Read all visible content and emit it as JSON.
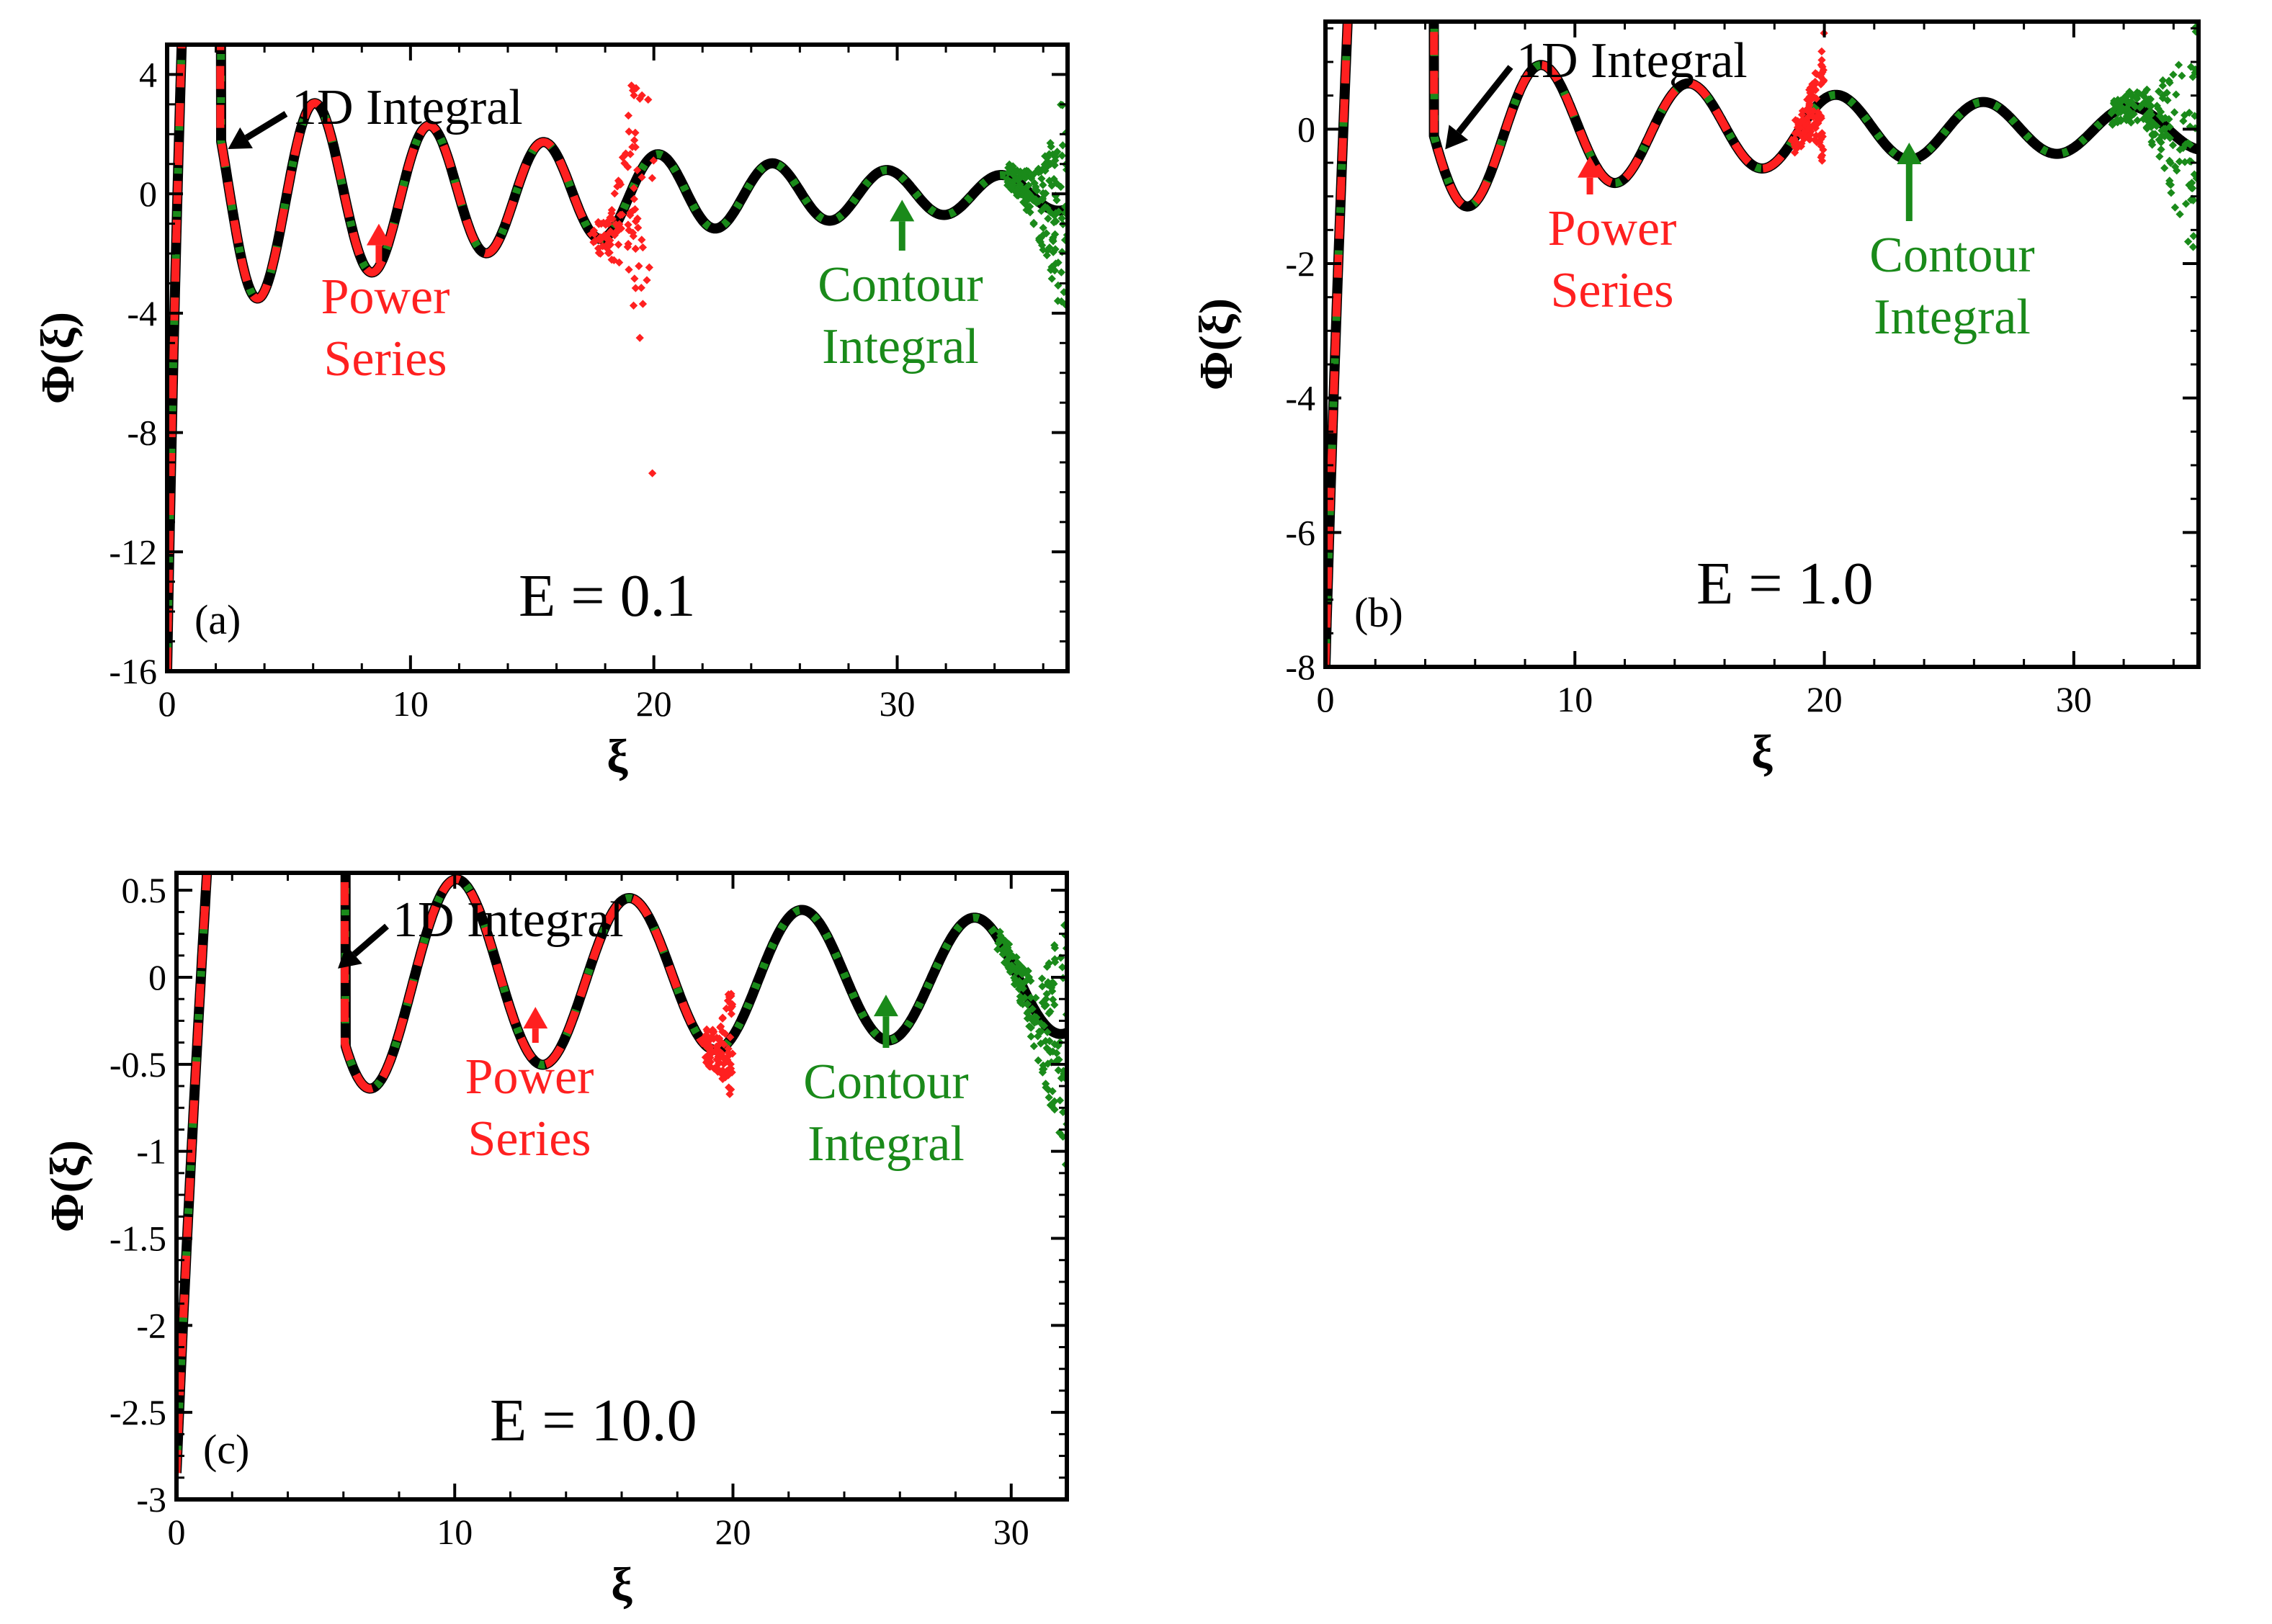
{
  "chart_data": [
    {
      "type": "line",
      "panel": "(a)",
      "title": "E = 0.1",
      "xlabel": "ξ",
      "ylabel": "Φ(ξ)",
      "xlim": [
        0,
        37
      ],
      "ylim": [
        -16,
        5
      ],
      "xticks": [
        0,
        10,
        20,
        30
      ],
      "xtick_labels": [
        "0",
        "10",
        "20",
        "30"
      ],
      "yticks": [
        4,
        0,
        -4,
        -8,
        -12,
        -16
      ],
      "ytick_labels": [
        "4",
        "0",
        "-4",
        "-8",
        "-12",
        "-16"
      ],
      "series": [
        {
          "name": "1D Integral",
          "color": "#000000",
          "style": "solid",
          "x_range": [
            0,
            37
          ]
        },
        {
          "name": "Power Series",
          "color": "#ff2020",
          "style": "dashed",
          "x_range": [
            0,
            20
          ],
          "diverges_after": 17.5
        },
        {
          "name": "Contour Integral",
          "color": "#1a8a1a",
          "style": "dotted",
          "x_range": [
            0,
            37
          ],
          "diverges_after": 34.5
        }
      ],
      "curve": {
        "a_start": -16,
        "k": 0.92,
        "amp": 4.2,
        "decay": 0.065,
        "peak_x": 1.4,
        "period": 4.7,
        "gfloor": 0.22
      },
      "annotations": [
        {
          "text": [
            "1D Integral"
          ],
          "color": "#000000",
          "series": "1D Integral",
          "arrow_to_x": 2.5,
          "arrow_to_y": 1.5
        },
        {
          "text": [
            "Power",
            "Series"
          ],
          "color": "#ff2020",
          "series": "Power Series",
          "arrow_to_x": 8.7,
          "arrow_to_y": -1.0
        },
        {
          "text": [
            "Contour",
            "Integral"
          ],
          "color": "#1a8a1a",
          "series": "Contour Integral",
          "arrow_to_x": 30.2,
          "arrow_to_y": -0.2
        }
      ]
    },
    {
      "type": "line",
      "panel": "(b)",
      "title": "E = 1.0",
      "xlabel": "ξ",
      "ylabel": "Φ(ξ)",
      "xlim": [
        0,
        35
      ],
      "ylim": [
        -8,
        1.6
      ],
      "xticks": [
        0,
        10,
        20,
        30
      ],
      "xtick_labels": [
        "0",
        "10",
        "20",
        "30"
      ],
      "yticks": [
        0,
        -2,
        -4,
        -6,
        -8
      ],
      "ytick_labels": [
        "0",
        "-2",
        "-4",
        "-6",
        "-8"
      ],
      "series": [
        {
          "name": "1D Integral",
          "color": "#000000",
          "style": "solid",
          "x_range": [
            0,
            35
          ]
        },
        {
          "name": "Power Series",
          "color": "#ff2020",
          "style": "dashed",
          "x_range": [
            0,
            20
          ],
          "diverges_after": 18.8
        },
        {
          "name": "Contour Integral",
          "color": "#1a8a1a",
          "style": "dotted",
          "x_range": [
            0,
            35
          ],
          "diverges_after": 31.5
        }
      ],
      "curve": {
        "a_start": -8,
        "k": 0.85,
        "amp": 1.4,
        "decay": 0.085,
        "peak_x": 2.8,
        "period": 5.9,
        "gfloor": 0.3
      },
      "annotations": [
        {
          "text": [
            "1D Integral"
          ],
          "color": "#000000",
          "series": "1D Integral",
          "arrow_to_x": 4.8,
          "arrow_to_y": -0.3
        },
        {
          "text": [
            "Power",
            "Series"
          ],
          "color": "#ff2020",
          "series": "Power Series",
          "arrow_to_x": 10.6,
          "arrow_to_y": -0.4
        },
        {
          "text": [
            "Contour",
            "Integral"
          ],
          "color": "#1a8a1a",
          "series": "Contour Integral",
          "arrow_to_x": 23.4,
          "arrow_to_y": -0.2
        }
      ]
    },
    {
      "type": "line",
      "panel": "(c)",
      "title": "E = 10.0",
      "xlabel": "ξ",
      "ylabel": "Φ(ξ)",
      "xlim": [
        0,
        32
      ],
      "ylim": [
        -3,
        0.6
      ],
      "xticks": [
        0,
        10,
        20,
        30
      ],
      "xtick_labels": [
        "0",
        "10",
        "20",
        "30"
      ],
      "yticks": [
        0.5,
        0,
        -0.5,
        -1,
        -1.5,
        -2,
        -2.5,
        -3
      ],
      "ytick_labels": [
        "0.5",
        "0",
        "-0.5",
        "-1",
        "-1.5",
        "-2",
        "-2.5",
        "-3"
      ],
      "series": [
        {
          "name": "1D Integral",
          "color": "#000000",
          "style": "solid",
          "x_range": [
            0,
            32
          ]
        },
        {
          "name": "Power Series",
          "color": "#ff2020",
          "style": "dashed",
          "x_range": [
            0,
            20
          ],
          "diverges_after": 19.0
        },
        {
          "name": "Contour Integral",
          "color": "#1a8a1a",
          "style": "dotted",
          "x_range": [
            0,
            32
          ],
          "diverges_after": 29.5
        }
      ],
      "curve": {
        "a_start": -2.85,
        "k": 0.55,
        "amp": 0.55,
        "decay": 0.085,
        "peak_x": 3.9,
        "period": 6.2,
        "gfloor": 0.35
      },
      "annotations": [
        {
          "text": [
            "1D Integral"
          ],
          "color": "#000000",
          "series": "1D Integral",
          "arrow_to_x": 5.8,
          "arrow_to_y": 0.05
        },
        {
          "text": [
            "Power",
            "Series"
          ],
          "color": "#ff2020",
          "series": "Power Series",
          "arrow_to_x": 12.9,
          "arrow_to_y": -0.17
        },
        {
          "text": [
            "Contour",
            "Integral"
          ],
          "color": "#1a8a1a",
          "series": "Contour Integral",
          "arrow_to_x": 25.5,
          "arrow_to_y": -0.1
        }
      ]
    }
  ]
}
